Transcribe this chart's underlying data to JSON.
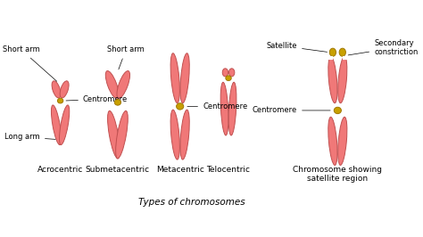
{
  "title": "Types of chromosomes",
  "background_color": "#ffffff",
  "chr_color": "#f07878",
  "chr_edge_color": "#c05050",
  "centromere_color": "#c8a000",
  "centromere_edge_color": "#a07800",
  "labels": {
    "acrocentric": "Acrocentric",
    "submetacentric": "Submetacentric",
    "metacentric": "Metacentric",
    "telocentric": "Telocentric",
    "satellite_region": "Chromosome showing\nsatellite region"
  },
  "annotations": {
    "short_arm": "Short arm",
    "long_arm": "Long arm",
    "centromere": "Centromere",
    "satellite": "Satellite",
    "secondary_constriction": "Secondary\nconstriction"
  },
  "label_fontsize": 6.5,
  "annotation_fontsize": 6,
  "title_fontsize": 7.5,
  "figsize": [
    4.74,
    2.66
  ],
  "dpi": 100
}
